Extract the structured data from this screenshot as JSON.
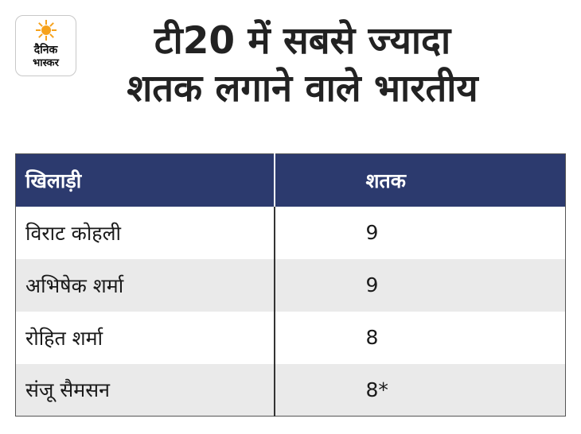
{
  "logo": {
    "line1": "दैनिक",
    "line2": "भास्कर",
    "sun_color": "#f6a21c"
  },
  "title": {
    "line1": "टी20 में सबसे ज्यादा",
    "line2": "शतक लगाने वाले भारतीय"
  },
  "table": {
    "headers": [
      "खिलाड़ी",
      "शतक"
    ],
    "rows": [
      {
        "player": "विराट कोहली",
        "centuries": "9"
      },
      {
        "player": "अभिषेक शर्मा",
        "centuries": "9"
      },
      {
        "player": "रोहित शर्मा",
        "centuries": "8"
      },
      {
        "player": "संजू सैमसन",
        "centuries": "8*"
      }
    ],
    "header_color": "#2c3a6e",
    "alt_row_color": "#eaeaea"
  }
}
